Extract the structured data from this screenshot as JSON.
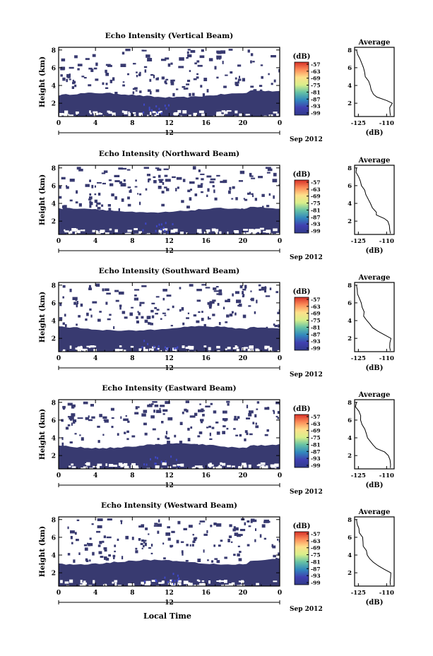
{
  "figure": {
    "xlabel": "Local Time"
  },
  "chart_data": [
    {
      "type": "heatmap",
      "title": "Echo Intensity (Vertical Beam)",
      "ylabel": "Height (km)",
      "xticks": [
        "0",
        "4",
        "8",
        "12",
        "16",
        "20",
        "0"
      ],
      "yticks": [
        "2",
        "4",
        "6",
        "8"
      ],
      "xlim": [
        0,
        24
      ],
      "ylim": [
        0.5,
        8.3
      ],
      "date": {
        "day": "12",
        "month": "Sep 2012"
      },
      "colorbar": {
        "unit": "(dB)",
        "ticks": [
          "-57",
          "-63",
          "-69",
          "-75",
          "-81",
          "-87",
          "-93",
          "-99"
        ],
        "colors": [
          "#d73027",
          "#fc8d59",
          "#fee08b",
          "#d9ef8b",
          "#66c2a5",
          "#3288bd",
          "#4040b0",
          "#313a8a"
        ]
      },
      "layer_top_km": 2.9,
      "scatter_top_km": 8.0,
      "fill_color": "#383a70",
      "average": {
        "title": "Average",
        "xlabel": "(dB)",
        "xticks": [
          "-125",
          "-110"
        ],
        "yticks": [
          "2",
          "4",
          "6",
          "8"
        ],
        "xlim": [
          -127,
          -106
        ],
        "ylim": [
          0.5,
          8.3
        ],
        "profile": [
          [
            0.6,
            -108
          ],
          [
            1.0,
            -108
          ],
          [
            1.5,
            -108
          ],
          [
            2.0,
            -107
          ],
          [
            2.3,
            -110
          ],
          [
            2.7,
            -115
          ],
          [
            3.0,
            -117
          ],
          [
            3.5,
            -118
          ],
          [
            4.0,
            -119
          ],
          [
            4.5,
            -120
          ],
          [
            5.0,
            -121
          ],
          [
            5.5,
            -122
          ],
          [
            6.0,
            -122
          ],
          [
            6.5,
            -123
          ],
          [
            7.0,
            -124
          ],
          [
            7.5,
            -125
          ],
          [
            8.0,
            -126
          ]
        ]
      }
    },
    {
      "type": "heatmap",
      "title": "Echo Intensity (Northward Beam)",
      "ylabel": "Height (km)",
      "xticks": [
        "0",
        "4",
        "8",
        "12",
        "16",
        "20",
        "0"
      ],
      "yticks": [
        "2",
        "4",
        "6",
        "8"
      ],
      "xlim": [
        0,
        24
      ],
      "ylim": [
        0.5,
        8.3
      ],
      "date": {
        "day": "12",
        "month": "Sep 2012"
      },
      "colorbar": {
        "unit": "(dB)",
        "ticks": [
          "-57",
          "-63",
          "-69",
          "-75",
          "-81",
          "-87",
          "-93",
          "-99"
        ],
        "colors": [
          "#d73027",
          "#fc8d59",
          "#fee08b",
          "#d9ef8b",
          "#66c2a5",
          "#3288bd",
          "#4040b0",
          "#313a8a"
        ]
      },
      "layer_top_km": 3.2,
      "scatter_top_km": 8.0,
      "fill_color": "#383a70",
      "average": {
        "title": "Average",
        "xlabel": "(dB)",
        "xticks": [
          "-125",
          "-110"
        ],
        "yticks": [
          "2",
          "4",
          "6",
          "8"
        ],
        "xlim": [
          -127,
          -106
        ],
        "ylim": [
          0.5,
          8.3
        ],
        "profile": [
          [
            0.6,
            -108
          ],
          [
            1.0,
            -108
          ],
          [
            1.5,
            -108
          ],
          [
            2.0,
            -109
          ],
          [
            2.3,
            -111
          ],
          [
            2.7,
            -115
          ],
          [
            3.0,
            -116
          ],
          [
            3.5,
            -118
          ],
          [
            4.0,
            -119
          ],
          [
            4.5,
            -120
          ],
          [
            5.0,
            -121
          ],
          [
            5.5,
            -122
          ],
          [
            6.0,
            -123
          ],
          [
            6.5,
            -124
          ],
          [
            7.0,
            -125
          ],
          [
            7.5,
            -126
          ],
          [
            8.0,
            -126
          ]
        ]
      }
    },
    {
      "type": "heatmap",
      "title": "Echo Intensity (Southward Beam)",
      "ylabel": "Height (km)",
      "xticks": [
        "0",
        "4",
        "8",
        "12",
        "16",
        "20",
        "0"
      ],
      "yticks": [
        "2",
        "4",
        "6",
        "8"
      ],
      "xlim": [
        0,
        24
      ],
      "ylim": [
        0.5,
        8.3
      ],
      "date": {
        "day": "12",
        "month": "Sep 2012"
      },
      "colorbar": {
        "unit": "(dB)",
        "ticks": [
          "-57",
          "-63",
          "-69",
          "-75",
          "-81",
          "-87",
          "-93",
          "-99"
        ],
        "colors": [
          "#d73027",
          "#fc8d59",
          "#fee08b",
          "#d9ef8b",
          "#66c2a5",
          "#3288bd",
          "#4040b0",
          "#313a8a"
        ]
      },
      "layer_top_km": 3.1,
      "scatter_top_km": 8.0,
      "fill_color": "#383a70",
      "average": {
        "title": "Average",
        "xlabel": "(dB)",
        "xticks": [
          "-125",
          "-110"
        ],
        "yticks": [
          "2",
          "4",
          "6",
          "8"
        ],
        "xlim": [
          -127,
          -106
        ],
        "ylim": [
          0.5,
          8.3
        ],
        "profile": [
          [
            0.6,
            -108
          ],
          [
            1.0,
            -108
          ],
          [
            1.5,
            -108
          ],
          [
            2.0,
            -108
          ],
          [
            2.4,
            -111
          ],
          [
            2.8,
            -115
          ],
          [
            3.2,
            -117
          ],
          [
            3.6,
            -119
          ],
          [
            4.0,
            -121
          ],
          [
            4.5,
            -122
          ],
          [
            5.0,
            -122
          ],
          [
            5.5,
            -123
          ],
          [
            6.0,
            -124
          ],
          [
            6.5,
            -124
          ],
          [
            7.0,
            -125
          ],
          [
            7.5,
            -126
          ],
          [
            8.0,
            -126
          ]
        ]
      }
    },
    {
      "type": "heatmap",
      "title": "Echo Intensity (Eastward Beam)",
      "ylabel": "Height (km)",
      "xticks": [
        "0",
        "4",
        "8",
        "12",
        "16",
        "20",
        "0"
      ],
      "yticks": [
        "2",
        "4",
        "6",
        "8"
      ],
      "xlim": [
        0,
        24
      ],
      "ylim": [
        0.5,
        8.3
      ],
      "date": {
        "day": "12",
        "month": "Sep 2012"
      },
      "colorbar": {
        "unit": "(dB)",
        "ticks": [
          "-57",
          "-63",
          "-69",
          "-75",
          "-81",
          "-87",
          "-93",
          "-99"
        ],
        "colors": [
          "#d73027",
          "#fc8d59",
          "#fee08b",
          "#d9ef8b",
          "#66c2a5",
          "#3288bd",
          "#4040b0",
          "#313a8a"
        ]
      },
      "layer_top_km": 3.1,
      "scatter_top_km": 8.0,
      "fill_color": "#383a70",
      "average": {
        "title": "Average",
        "xlabel": "(dB)",
        "xticks": [
          "-125",
          "-110"
        ],
        "yticks": [
          "2",
          "4",
          "6",
          "8"
        ],
        "xlim": [
          -127,
          -106
        ],
        "ylim": [
          0.5,
          8.3
        ],
        "profile": [
          [
            0.6,
            -108
          ],
          [
            1.0,
            -108
          ],
          [
            1.5,
            -108
          ],
          [
            2.0,
            -109
          ],
          [
            2.4,
            -111
          ],
          [
            2.8,
            -115
          ],
          [
            3.2,
            -117
          ],
          [
            3.6,
            -119
          ],
          [
            4.0,
            -120
          ],
          [
            4.5,
            -121
          ],
          [
            5.0,
            -122
          ],
          [
            5.5,
            -123
          ],
          [
            6.0,
            -124
          ],
          [
            6.5,
            -124
          ],
          [
            7.0,
            -125
          ],
          [
            7.5,
            -126
          ],
          [
            8.0,
            -126
          ]
        ]
      }
    },
    {
      "type": "heatmap",
      "title": "Echo Intensity (Westward Beam)",
      "ylabel": "Height (km)",
      "xticks": [
        "0",
        "4",
        "8",
        "12",
        "16",
        "20",
        "0"
      ],
      "yticks": [
        "2",
        "4",
        "6",
        "8"
      ],
      "xlim": [
        0,
        24
      ],
      "ylim": [
        0.5,
        8.3
      ],
      "date": {
        "day": "12",
        "month": "Sep 2012"
      },
      "colorbar": {
        "unit": "(dB)",
        "ticks": [
          "-57",
          "-63",
          "-69",
          "-75",
          "-81",
          "-87",
          "-93",
          "-99"
        ],
        "colors": [
          "#d73027",
          "#fc8d59",
          "#fee08b",
          "#d9ef8b",
          "#66c2a5",
          "#3288bd",
          "#4040b0",
          "#313a8a"
        ]
      },
      "layer_top_km": 3.2,
      "scatter_top_km": 8.0,
      "fill_color": "#383a70",
      "average": {
        "title": "Average",
        "xlabel": "(dB)",
        "xticks": [
          "-125",
          "-110"
        ],
        "yticks": [
          "2",
          "4",
          "6",
          "8"
        ],
        "xlim": [
          -127,
          -106
        ],
        "ylim": [
          0.5,
          8.3
        ],
        "profile": [
          [
            0.6,
            -108
          ],
          [
            1.0,
            -108
          ],
          [
            1.5,
            -108
          ],
          [
            2.0,
            -108
          ],
          [
            2.4,
            -111
          ],
          [
            2.8,
            -115
          ],
          [
            3.2,
            -117
          ],
          [
            3.6,
            -119
          ],
          [
            4.0,
            -120
          ],
          [
            4.5,
            -121
          ],
          [
            5.0,
            -122
          ],
          [
            5.5,
            -122
          ],
          [
            6.0,
            -123
          ],
          [
            6.5,
            -124
          ],
          [
            7.0,
            -125
          ],
          [
            7.5,
            -126
          ],
          [
            8.0,
            -126
          ]
        ]
      }
    }
  ]
}
